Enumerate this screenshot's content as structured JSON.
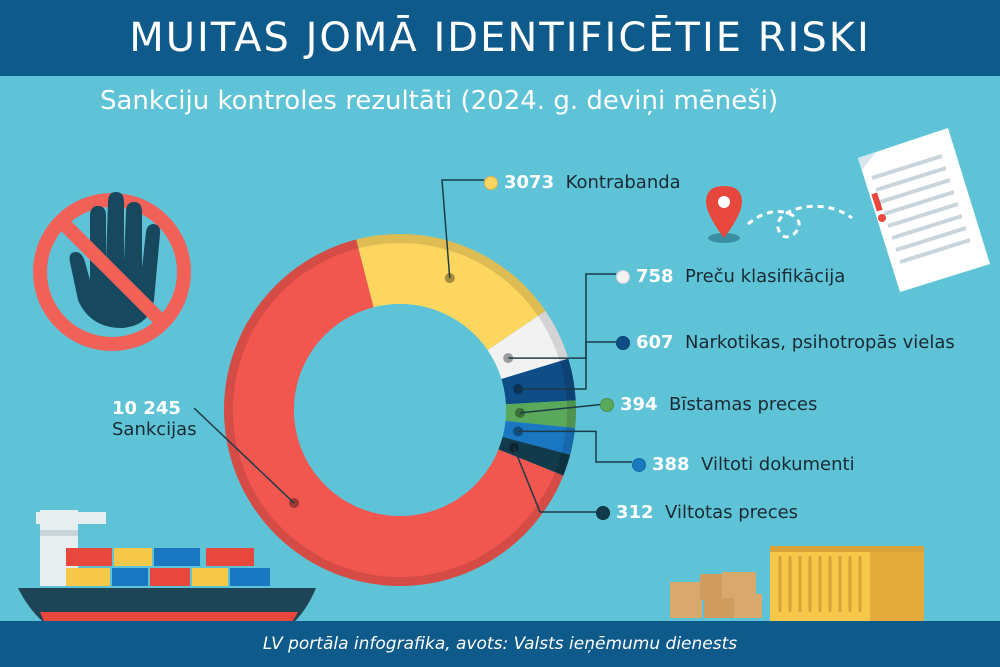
{
  "title": "MUITAS JOMĀ IDENTIFICĒTIE RISKI",
  "subtitle": "Sankciju kontroles rezultāti (2024. g. deviņi mēneši)",
  "footer": "LV portāla infografika, avots: Valsts ieņēmumu dienests",
  "chart_data": {
    "type": "pie",
    "variant": "donut",
    "categories": [
      "Sankcijas",
      "Kontrabanda",
      "Preču klasifikācija",
      "Narkotikas, psihotropās vielas",
      "Bīstamas preces",
      "Viltoti dokumenti",
      "Viltotas preces"
    ],
    "values": [
      10245,
      3073,
      758,
      607,
      394,
      388,
      312
    ],
    "value_labels": [
      "10 245",
      "3073",
      "758",
      "607",
      "394",
      "388",
      "312"
    ],
    "colors": [
      "#f2574f",
      "#fdd660",
      "#f2f2f2",
      "#0e4d85",
      "#5aa85a",
      "#1a78c2",
      "#113a4a"
    ]
  },
  "icons": {
    "stop": "stop-hand-icon",
    "document": "document-warning-icon",
    "pin": "location-pin-icon",
    "ship": "cargo-ship-icon",
    "boxes": "boxes-icon",
    "container": "shipping-container-icon"
  }
}
